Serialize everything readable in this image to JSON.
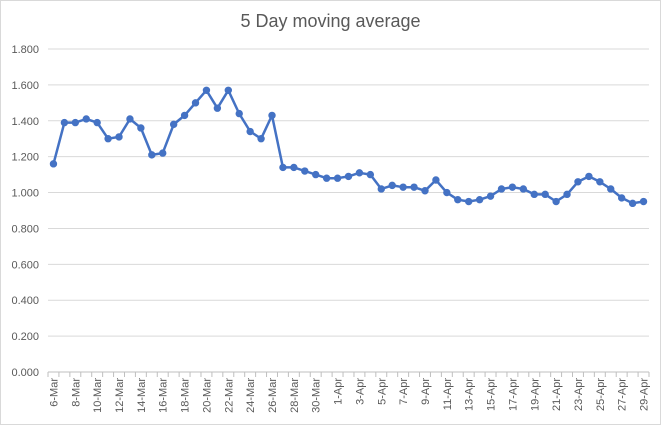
{
  "chart_data": {
    "type": "line",
    "title": "5 Day moving average",
    "xlabel": "",
    "ylabel": "",
    "ylim": [
      0,
      1.8
    ],
    "y_ticks": [
      "0.000",
      "0.200",
      "0.400",
      "0.600",
      "0.800",
      "1.000",
      "1.200",
      "1.400",
      "1.600",
      "1.800"
    ],
    "grid": true,
    "legend": "none",
    "line_color": "#4472c4",
    "grid_color": "#d9d9d9",
    "x_tick_labels": [
      "6-Mar",
      "8-Mar",
      "10-Mar",
      "12-Mar",
      "14-Mar",
      "16-Mar",
      "18-Mar",
      "20-Mar",
      "22-Mar",
      "24-Mar",
      "26-Mar",
      "28-Mar",
      "30-Mar",
      "1-Apr",
      "3-Apr",
      "5-Apr",
      "7-Apr",
      "9-Apr",
      "11-Apr",
      "13-Apr",
      "15-Apr",
      "17-Apr",
      "19-Apr",
      "21-Apr",
      "23-Apr",
      "25-Apr",
      "27-Apr",
      "29-Apr"
    ],
    "categories": [
      "6-Mar",
      "7-Mar",
      "8-Mar",
      "9-Mar",
      "10-Mar",
      "11-Mar",
      "12-Mar",
      "13-Mar",
      "14-Mar",
      "15-Mar",
      "16-Mar",
      "17-Mar",
      "18-Mar",
      "19-Mar",
      "20-Mar",
      "21-Mar",
      "22-Mar",
      "23-Mar",
      "24-Mar",
      "25-Mar",
      "26-Mar",
      "27-Mar",
      "28-Mar",
      "29-Mar",
      "30-Mar",
      "31-Mar",
      "1-Apr",
      "2-Apr",
      "3-Apr",
      "4-Apr",
      "5-Apr",
      "6-Apr",
      "7-Apr",
      "8-Apr",
      "9-Apr",
      "10-Apr",
      "11-Apr",
      "12-Apr",
      "13-Apr",
      "14-Apr",
      "15-Apr",
      "16-Apr",
      "17-Apr",
      "18-Apr",
      "19-Apr",
      "20-Apr",
      "21-Apr",
      "22-Apr",
      "23-Apr",
      "24-Apr",
      "25-Apr",
      "26-Apr",
      "27-Apr",
      "28-Apr",
      "29-Apr"
    ],
    "series": [
      {
        "values": [
          1.16,
          1.39,
          1.39,
          1.41,
          1.39,
          1.3,
          1.31,
          1.41,
          1.36,
          1.21,
          1.22,
          1.38,
          1.43,
          1.5,
          1.57,
          1.47,
          1.57,
          1.44,
          1.34,
          1.3,
          1.43,
          1.14,
          1.14,
          1.12,
          1.1,
          1.08,
          1.08,
          1.09,
          1.11,
          1.1,
          1.02,
          1.04,
          1.03,
          1.03,
          1.01,
          1.07,
          1.0,
          0.96,
          0.95,
          0.96,
          0.98,
          1.02,
          1.03,
          1.02,
          0.99,
          0.99,
          0.95,
          0.99,
          1.06,
          1.09,
          1.06,
          1.02,
          0.97,
          0.94,
          0.95
        ]
      }
    ]
  }
}
